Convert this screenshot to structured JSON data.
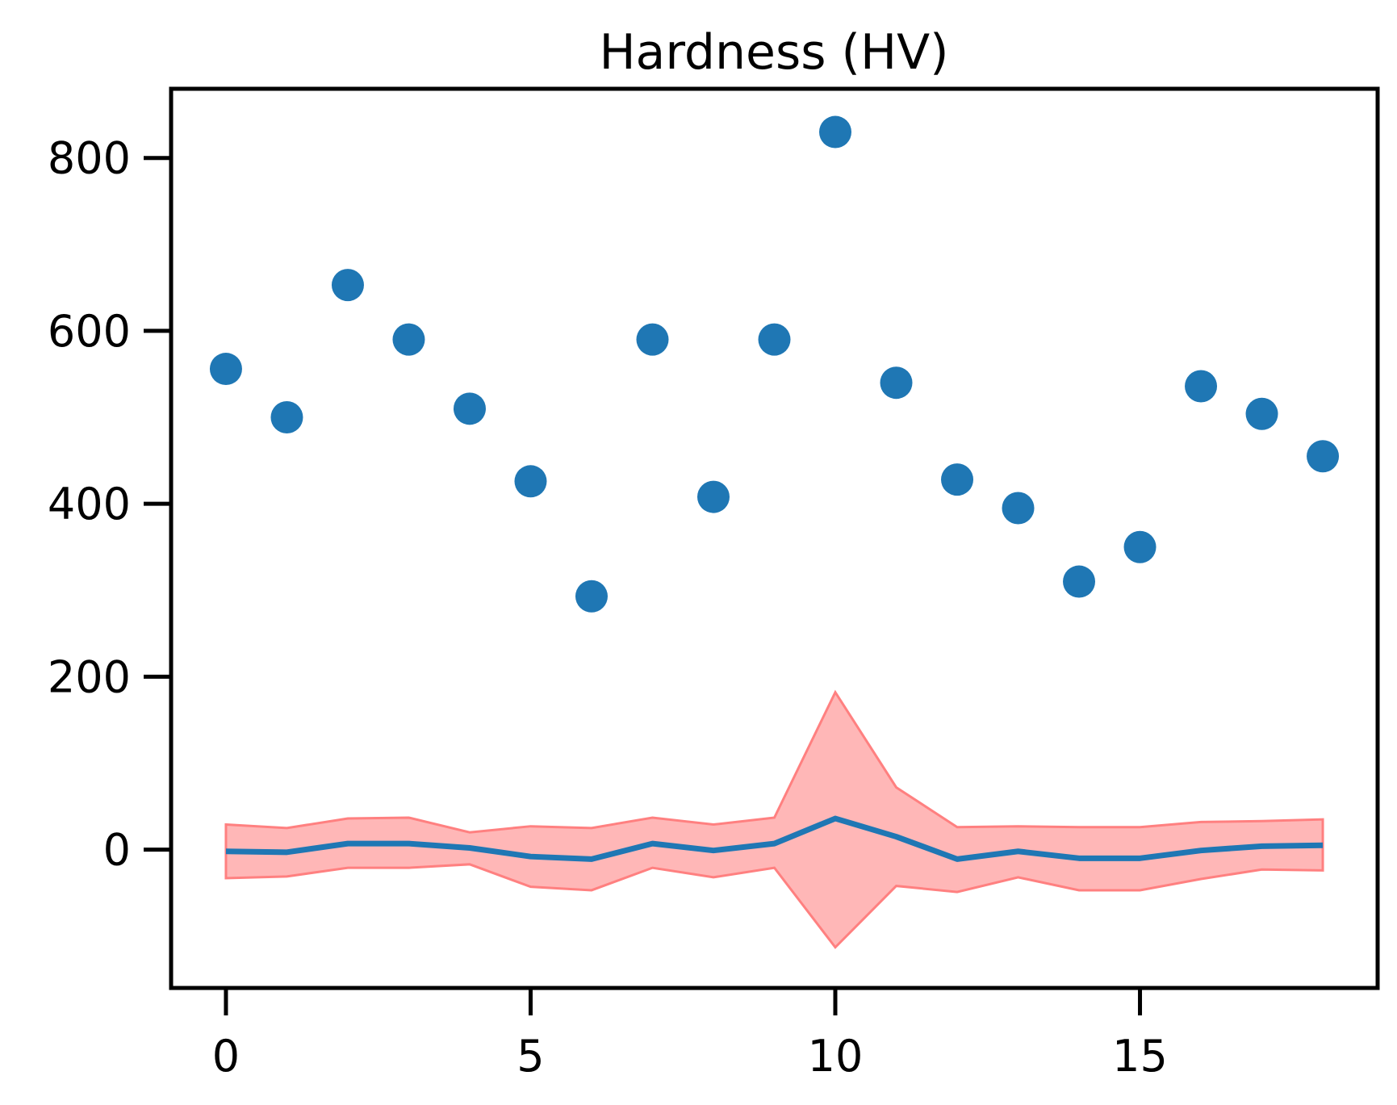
{
  "chart_data": {
    "type": "scatter",
    "title": "Hardness (HV)",
    "xlabel": "",
    "ylabel": "",
    "xlim": [
      -0.9,
      18.9
    ],
    "ylim": [
      -160,
      880
    ],
    "xticks": [
      0,
      5,
      10,
      15
    ],
    "yticks": [
      0,
      200,
      400,
      600,
      800
    ],
    "grid": false,
    "legend": "none",
    "colors": {
      "points": "#1f77b4",
      "line": "#1f77b4",
      "band_fill": "#ffb3b3",
      "band_edge": "#ff8080"
    },
    "series": [
      {
        "kind": "points",
        "x": [
          0,
          1,
          2,
          3,
          4,
          5,
          6,
          7,
          8,
          9,
          10,
          11,
          12,
          13,
          14,
          15,
          16,
          17,
          18
        ],
        "values": [
          556,
          500,
          653,
          590,
          510,
          426,
          293,
          590,
          408,
          590,
          830,
          540,
          428,
          395,
          310,
          350,
          536,
          504,
          455
        ]
      },
      {
        "kind": "line",
        "x": [
          0,
          1,
          2,
          3,
          4,
          5,
          6,
          7,
          8,
          9,
          10,
          11,
          12,
          13,
          14,
          15,
          16,
          17,
          18
        ],
        "values": [
          -2,
          -3,
          7,
          7,
          2,
          -8,
          -11,
          7,
          -1,
          7,
          36,
          15,
          -11,
          -2,
          -10,
          -10,
          -1,
          4,
          5
        ]
      },
      {
        "kind": "band",
        "x": [
          0,
          1,
          2,
          3,
          4,
          5,
          6,
          7,
          8,
          9,
          10,
          11,
          12,
          13,
          14,
          15,
          16,
          17,
          18
        ],
        "lower": [
          -33,
          -31,
          -21,
          -21,
          -17,
          -43,
          -47,
          -21,
          -32,
          -21,
          -113,
          -42,
          -49,
          -32,
          -47,
          -47,
          -34,
          -23,
          -24
        ],
        "upper": [
          29,
          25,
          36,
          37,
          20,
          27,
          25,
          37,
          29,
          37,
          182,
          72,
          26,
          27,
          26,
          26,
          32,
          33,
          35
        ]
      }
    ]
  }
}
